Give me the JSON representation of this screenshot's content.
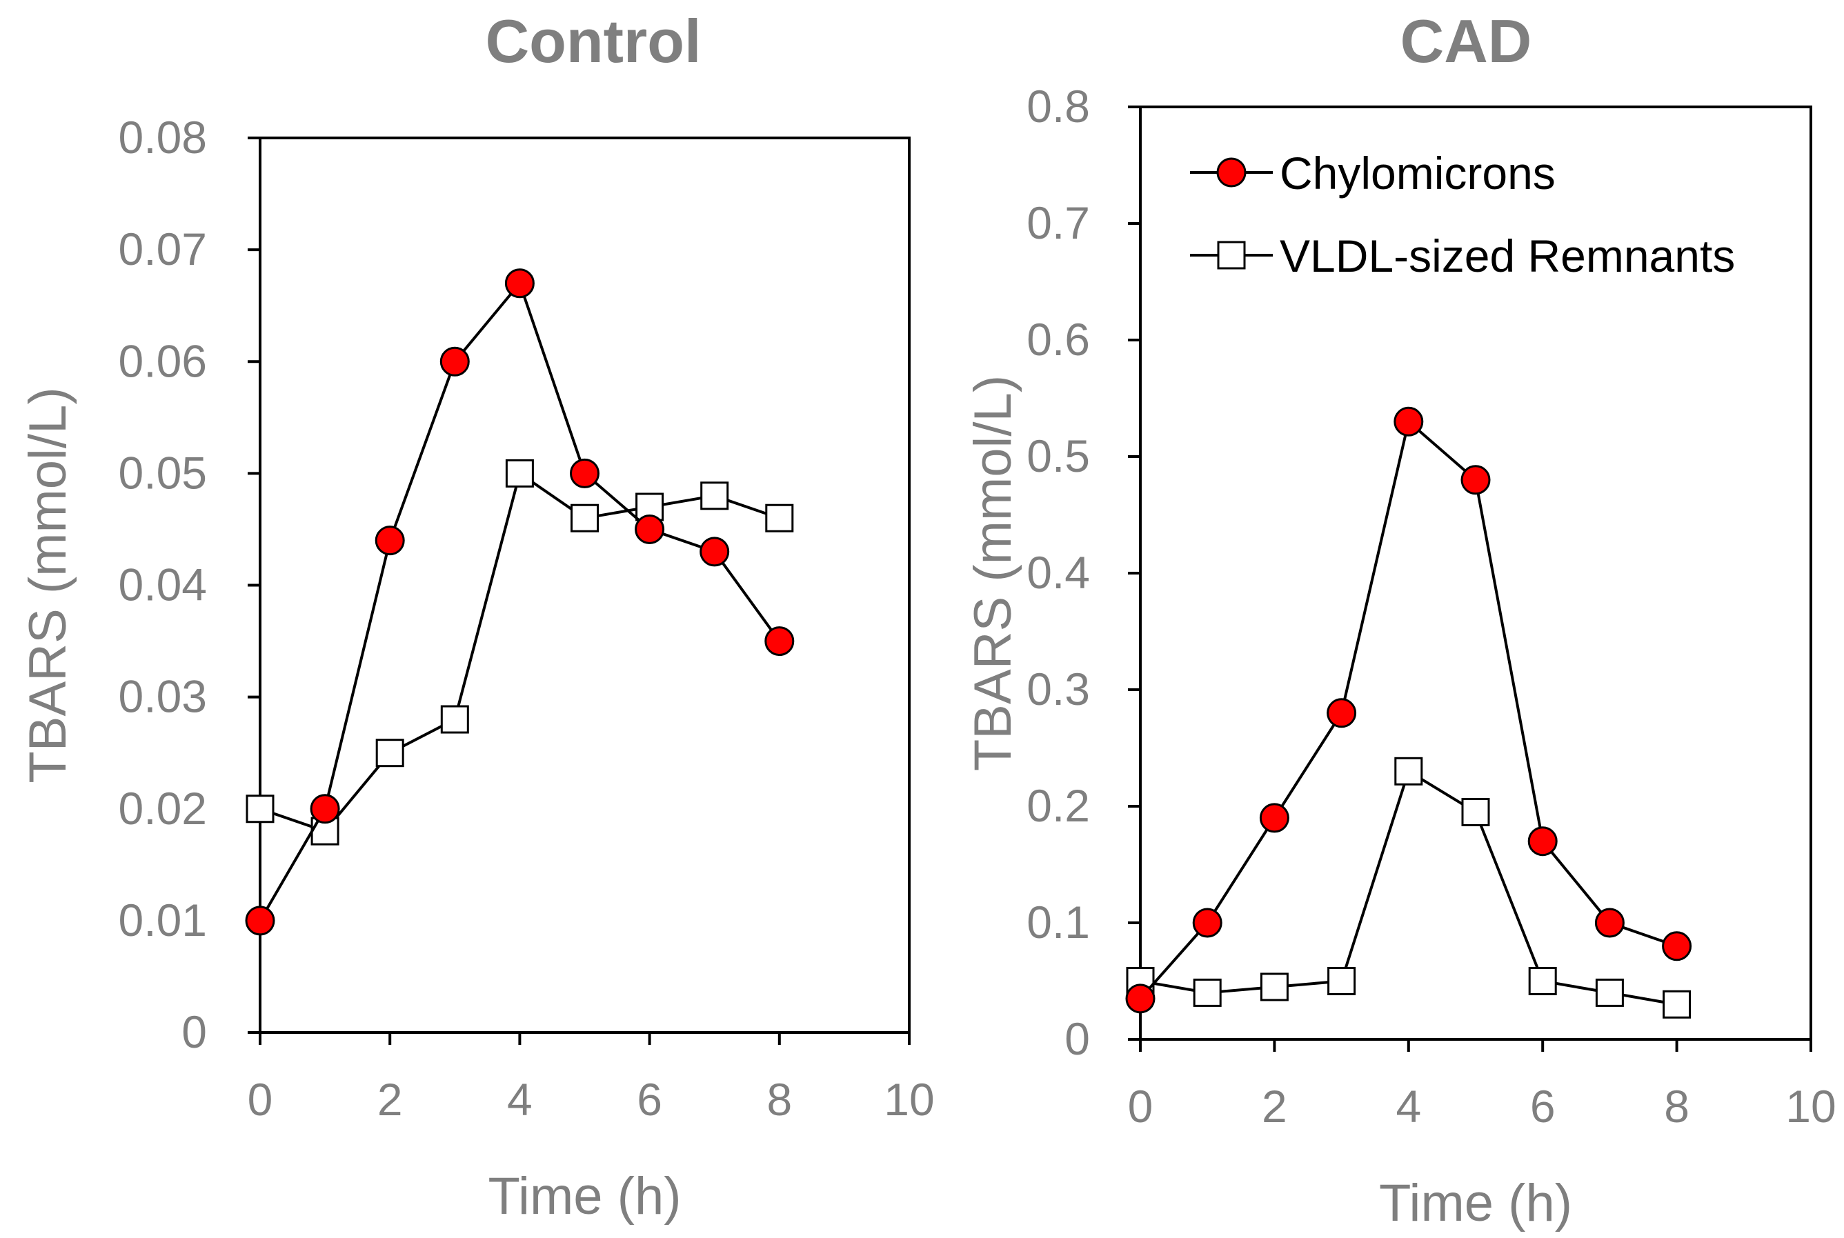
{
  "colors": {
    "text_gray": "#7f7f7f",
    "axis": "#000000",
    "line": "#000000",
    "chylomicrons_marker": "#ff0000",
    "remnants_marker": "#ffffff"
  },
  "legend": {
    "items": [
      {
        "label": "Chylomicrons",
        "marker": "circle-red"
      },
      {
        "label": "VLDL-sized Remnants",
        "marker": "square-open"
      }
    ]
  },
  "chart_data": [
    {
      "type": "line",
      "title": "Control",
      "xlabel": "Time (h)",
      "ylabel": "TBARS (mmol/L)",
      "xlim": [
        0,
        10
      ],
      "ylim": [
        0,
        0.08
      ],
      "xticks": [
        "0",
        "2",
        "4",
        "6",
        "8",
        "10"
      ],
      "yticks": [
        "0",
        "0.01",
        "0.02",
        "0.03",
        "0.04",
        "0.05",
        "0.06",
        "0.07",
        "0.08"
      ],
      "grid": false,
      "series": [
        {
          "name": "Chylomicrons",
          "x": [
            0,
            1,
            2,
            3,
            4,
            5,
            6,
            7,
            8
          ],
          "y": [
            0.01,
            0.02,
            0.044,
            0.06,
            0.067,
            0.05,
            0.045,
            0.043,
            0.035
          ]
        },
        {
          "name": "VLDL-sized Remnants",
          "x": [
            0,
            1,
            2,
            3,
            4,
            5,
            6,
            7,
            8
          ],
          "y": [
            0.02,
            0.018,
            0.025,
            0.028,
            0.05,
            0.046,
            0.047,
            0.048,
            0.046
          ]
        }
      ]
    },
    {
      "type": "line",
      "title": "CAD",
      "xlabel": "Time (h)",
      "ylabel": "TBARS (mmol/L)",
      "xlim": [
        0,
        10
      ],
      "ylim": [
        0,
        0.8
      ],
      "xticks": [
        "0",
        "2",
        "4",
        "6",
        "8",
        "10"
      ],
      "yticks": [
        "0",
        "0.1",
        "0.2",
        "0.3",
        "0.4",
        "0.5",
        "0.6",
        "0.7",
        "0.8"
      ],
      "grid": false,
      "legend_position": "top-left",
      "series": [
        {
          "name": "Chylomicrons",
          "x": [
            0,
            1,
            2,
            3,
            4,
            5,
            6,
            7,
            8
          ],
          "y": [
            0.035,
            0.1,
            0.19,
            0.28,
            0.53,
            0.48,
            0.17,
            0.1,
            0.08
          ]
        },
        {
          "name": "VLDL-sized Remnants",
          "x": [
            0,
            1,
            2,
            3,
            4,
            5,
            6,
            7,
            8
          ],
          "y": [
            0.05,
            0.04,
            0.045,
            0.05,
            0.23,
            0.195,
            0.05,
            0.04,
            0.03
          ]
        }
      ]
    }
  ]
}
